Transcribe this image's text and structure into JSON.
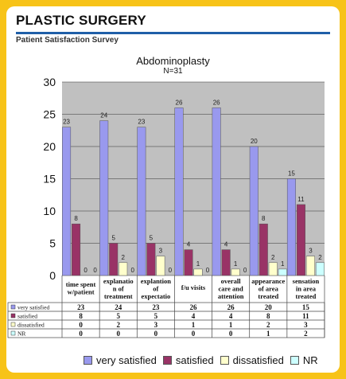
{
  "header": {
    "title": "PLASTIC SURGERY",
    "subtitle": "Patient Satisfaction Survey"
  },
  "colors": {
    "background": "#f7c318",
    "rule": "#1f5fa8",
    "plot_area": "#c0c0c0",
    "very_satisfied": "#9999ee",
    "satisfied": "#993366",
    "dissatisfied": "#ffffcc",
    "nr": "#ccffff"
  },
  "chart_data": {
    "type": "bar",
    "title": "Abdominoplasty",
    "subtitle": "N=31",
    "categories": [
      [
        "time spent",
        "w/patient"
      ],
      [
        "explanatio",
        "n of",
        "treatment"
      ],
      [
        "explantion",
        "of",
        "expectatio"
      ],
      [
        "f/u visits"
      ],
      [
        "overall",
        "care and",
        "attention"
      ],
      [
        "appearance",
        "of area",
        "treated"
      ],
      [
        "sensation",
        "in area",
        "treated"
      ]
    ],
    "series": [
      {
        "name": "very satisfied",
        "values": [
          23,
          24,
          23,
          26,
          26,
          20,
          15
        ]
      },
      {
        "name": "satisfied",
        "values": [
          8,
          5,
          5,
          4,
          4,
          8,
          11
        ]
      },
      {
        "name": "dissatisfied",
        "values": [
          0,
          2,
          3,
          1,
          1,
          2,
          3
        ]
      },
      {
        "name": "NR",
        "values": [
          0,
          0,
          0,
          0,
          0,
          1,
          2
        ]
      }
    ],
    "ylim": [
      0,
      30
    ],
    "yticks": [
      0,
      5,
      10,
      15,
      20,
      25,
      30
    ],
    "grid": true,
    "legend": "bottom",
    "data_table": true
  }
}
